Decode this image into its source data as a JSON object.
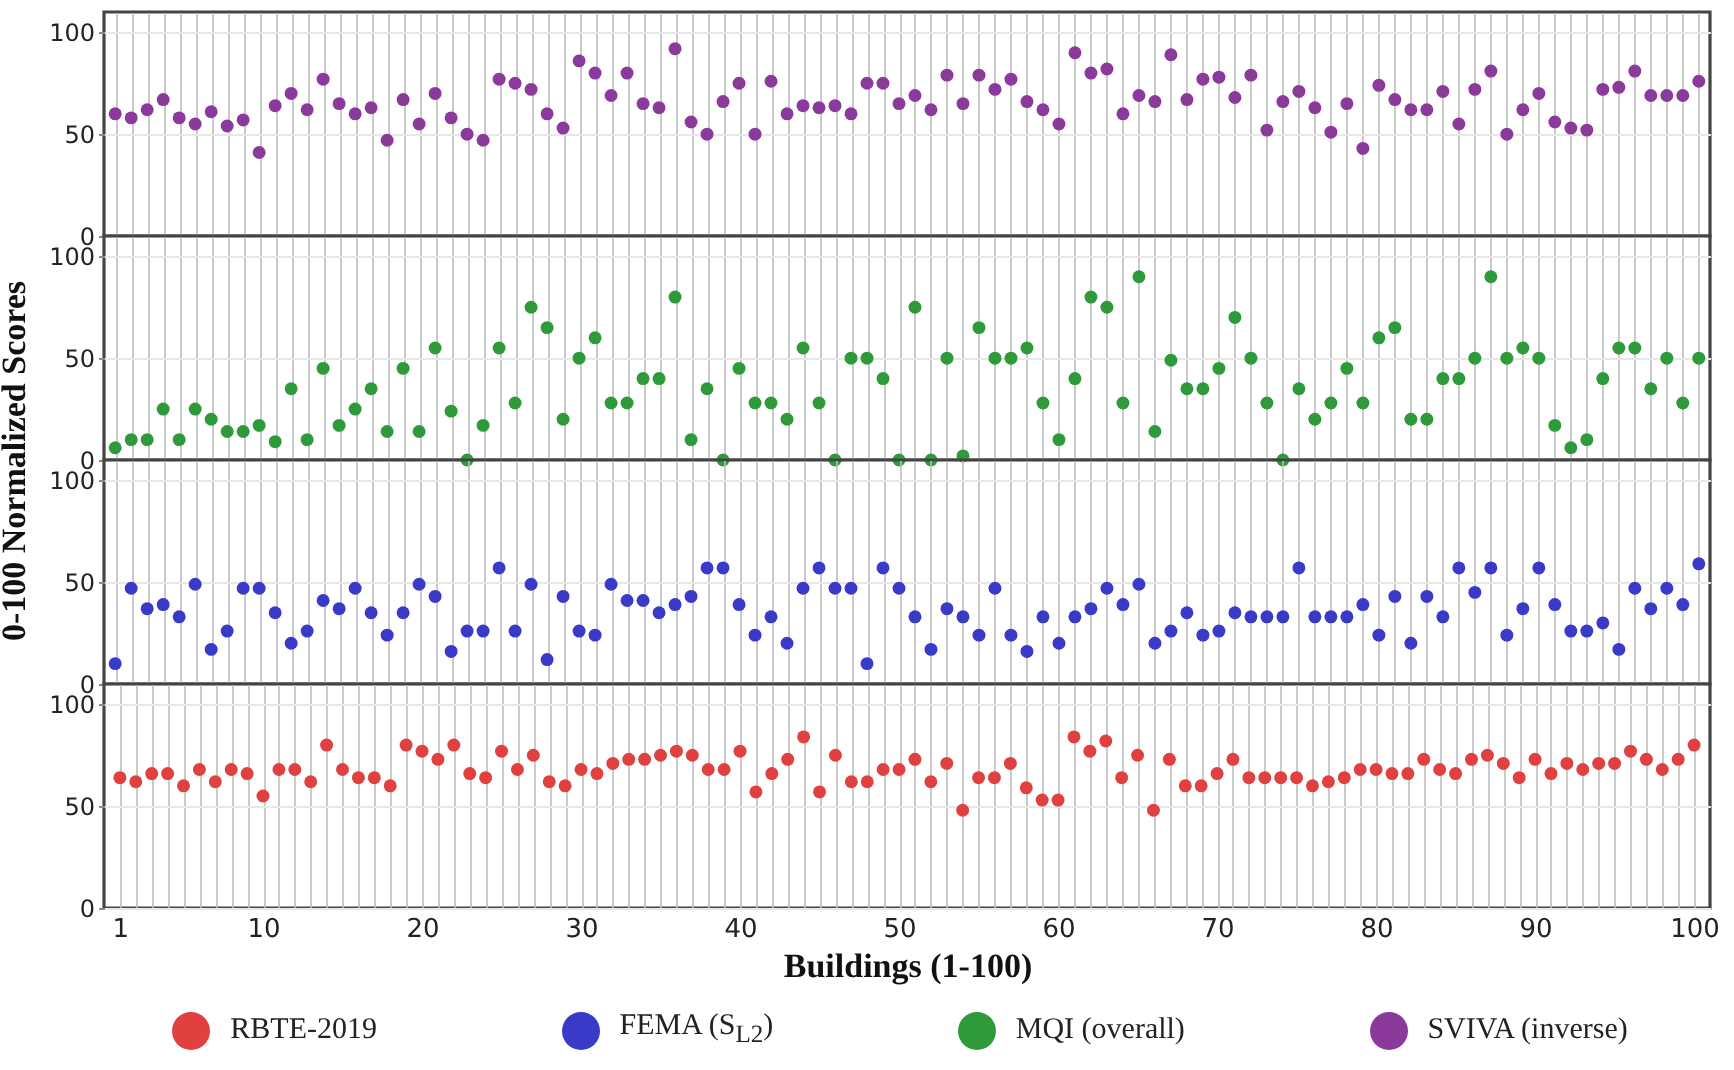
{
  "chart_data": [
    {
      "type": "scatter",
      "marker": "circle",
      "grid": true,
      "tick_labels": "y",
      "legend": "bottom",
      "ylim": [
        0,
        110
      ],
      "yticks": [
        0,
        50,
        100
      ],
      "categories": [
        null,
        null,
        null,
        null,
        null,
        null,
        null,
        null,
        null,
        null,
        null,
        null,
        null,
        null,
        null,
        null,
        null,
        null,
        null,
        null,
        null,
        null,
        null,
        null,
        null,
        null,
        null,
        null,
        null,
        null,
        null,
        null,
        null,
        null,
        null,
        null,
        null,
        null,
        null,
        null,
        null,
        null,
        null,
        null,
        null,
        null,
        null,
        null,
        null,
        null,
        null,
        null,
        null,
        null,
        null,
        null,
        null,
        null,
        null,
        null,
        null,
        null,
        null,
        null,
        null,
        null,
        null,
        null,
        null,
        null,
        null,
        null,
        null,
        null,
        null,
        null,
        null,
        null,
        null,
        null,
        null,
        null,
        null,
        null,
        null,
        null,
        null,
        null,
        null,
        null,
        null,
        null,
        null,
        null,
        null,
        null,
        null,
        null,
        null,
        null
      ],
      "series": [
        {
          "name": "SVIVA (inverse)",
          "color": "#8b3a9b",
          "values": [
            60,
            58,
            62,
            67,
            58,
            55,
            61,
            54,
            57,
            41,
            64,
            70,
            62,
            77,
            65,
            60,
            63,
            47,
            67,
            55,
            70,
            58,
            50,
            47,
            77,
            75,
            72,
            60,
            53,
            86,
            80,
            69,
            80,
            65,
            63,
            92,
            56,
            50,
            66,
            75,
            50,
            76,
            60,
            64,
            63,
            64,
            60,
            75,
            75,
            65,
            69,
            62,
            79,
            65,
            79,
            72,
            77,
            66,
            62,
            55,
            90,
            80,
            82,
            60,
            69,
            66,
            89,
            67,
            77,
            78,
            68,
            79,
            52,
            66,
            71,
            63,
            51,
            65,
            43,
            74,
            67,
            62,
            62,
            71,
            55,
            72,
            81,
            50,
            62,
            70,
            56,
            53,
            52,
            72,
            73,
            81,
            69,
            69,
            69,
            76
          ]
        }
      ]
    },
    {
      "type": "scatter",
      "marker": "circle",
      "grid": true,
      "tick_labels": "y",
      "legend": "bottom",
      "ylabel": "0-100 Normalized Scores",
      "ylim": [
        0,
        110
      ],
      "yticks": [
        0,
        50,
        100
      ],
      "categories": [
        null,
        null,
        null,
        null,
        null,
        null,
        null,
        null,
        null,
        null,
        null,
        null,
        null,
        null,
        null,
        null,
        null,
        null,
        null,
        null,
        null,
        null,
        null,
        null,
        null,
        null,
        null,
        null,
        null,
        null,
        null,
        null,
        null,
        null,
        null,
        null,
        null,
        null,
        null,
        null,
        null,
        null,
        null,
        null,
        null,
        null,
        null,
        null,
        null,
        null,
        null,
        null,
        null,
        null,
        null,
        null,
        null,
        null,
        null,
        null,
        null,
        null,
        null,
        null,
        null,
        null,
        null,
        null,
        null,
        null,
        null,
        null,
        null,
        null,
        null,
        null,
        null,
        null,
        null,
        null,
        null,
        null,
        null,
        null,
        null,
        null,
        null,
        null,
        null,
        null,
        null,
        null,
        null,
        null,
        null,
        null,
        null,
        null,
        null,
        null
      ],
      "series": [
        {
          "name": "MQI (overall)",
          "color": "#2f9a3a",
          "values": [
            6,
            10,
            10,
            25,
            10,
            25,
            20,
            14,
            14,
            17,
            9,
            35,
            10,
            45,
            17,
            25,
            35,
            14,
            45,
            14,
            55,
            24,
            0,
            17,
            55,
            28,
            75,
            65,
            20,
            50,
            60,
            28,
            28,
            40,
            40,
            80,
            10,
            35,
            0,
            45,
            28,
            28,
            20,
            55,
            28,
            0,
            50,
            50,
            40,
            0,
            75,
            0,
            50,
            2,
            65,
            50,
            50,
            55,
            28,
            10,
            40,
            80,
            75,
            28,
            90,
            14,
            49,
            35,
            35,
            45,
            70,
            50,
            28,
            0,
            35,
            20,
            28,
            45,
            28,
            60,
            65,
            20,
            20,
            40,
            40,
            50,
            90,
            50,
            55,
            50,
            17,
            6,
            10,
            40,
            55,
            55,
            35,
            50,
            28,
            50
          ]
        }
      ]
    },
    {
      "type": "scatter",
      "marker": "circle",
      "grid": true,
      "tick_labels": "y",
      "legend": "bottom",
      "ylim": [
        0,
        110
      ],
      "yticks": [
        0,
        50,
        100
      ],
      "categories": [
        null,
        null,
        null,
        null,
        null,
        null,
        null,
        null,
        null,
        null,
        null,
        null,
        null,
        null,
        null,
        null,
        null,
        null,
        null,
        null,
        null,
        null,
        null,
        null,
        null,
        null,
        null,
        null,
        null,
        null,
        null,
        null,
        null,
        null,
        null,
        null,
        null,
        null,
        null,
        null,
        null,
        null,
        null,
        null,
        null,
        null,
        null,
        null,
        null,
        null,
        null,
        null,
        null,
        null,
        null,
        null,
        null,
        null,
        null,
        null,
        null,
        null,
        null,
        null,
        null,
        null,
        null,
        null,
        null,
        null,
        null,
        null,
        null,
        null,
        null,
        null,
        null,
        null,
        null,
        null,
        null,
        null,
        null,
        null,
        null,
        null,
        null,
        null,
        null,
        null,
        null,
        null,
        null,
        null,
        null,
        null,
        null,
        null,
        null,
        null
      ],
      "series": [
        {
          "name": "FEMA (S$_{L2}$)",
          "color": "#3a3ac8",
          "values": [
            10,
            47,
            37,
            39,
            33,
            49,
            17,
            26,
            47,
            47,
            35,
            20,
            26,
            41,
            37,
            47,
            35,
            24,
            35,
            49,
            43,
            16,
            26,
            26,
            57,
            26,
            49,
            12,
            43,
            26,
            24,
            49,
            41,
            41,
            35,
            39,
            43,
            57,
            57,
            39,
            24,
            33,
            20,
            47,
            57,
            47,
            47,
            10,
            57,
            47,
            33,
            17,
            37,
            33,
            24,
            47,
            24,
            16,
            33,
            20,
            33,
            37,
            47,
            39,
            49,
            20,
            26,
            35,
            24,
            26,
            35,
            33,
            33,
            33,
            57,
            33,
            33,
            33,
            39,
            24,
            43,
            20,
            43,
            33,
            57,
            45,
            57,
            24,
            37,
            57,
            39,
            26,
            26,
            30,
            17,
            47,
            37,
            47,
            39,
            59
          ]
        }
      ]
    },
    {
      "type": "scatter",
      "marker": "circle",
      "grid": true,
      "legend": "bottom",
      "xlabel": "Buildings (1-100)",
      "xlim": [
        0,
        101
      ],
      "ylim": [
        0,
        110
      ],
      "yticks": [
        0,
        50,
        100
      ],
      "xticks": [
        1,
        {
          "value": 2,
          "label": null
        },
        {
          "value": 3,
          "label": null
        },
        {
          "value": 4,
          "label": null
        },
        {
          "value": 5,
          "label": null
        },
        {
          "value": 6,
          "label": null
        },
        {
          "value": 7,
          "label": null
        },
        {
          "value": 8,
          "label": null
        },
        {
          "value": 9,
          "label": null
        },
        10,
        {
          "value": 11,
          "label": null
        },
        {
          "value": 12,
          "label": null
        },
        {
          "value": 13,
          "label": null
        },
        {
          "value": 14,
          "label": null
        },
        {
          "value": 15,
          "label": null
        },
        {
          "value": 16,
          "label": null
        },
        {
          "value": 17,
          "label": null
        },
        {
          "value": 18,
          "label": null
        },
        {
          "value": 19,
          "label": null
        },
        20,
        {
          "value": 21,
          "label": null
        },
        {
          "value": 22,
          "label": null
        },
        {
          "value": 23,
          "label": null
        },
        {
          "value": 24,
          "label": null
        },
        {
          "value": 25,
          "label": null
        },
        {
          "value": 26,
          "label": null
        },
        {
          "value": 27,
          "label": null
        },
        {
          "value": 28,
          "label": null
        },
        {
          "value": 29,
          "label": null
        },
        30,
        {
          "value": 31,
          "label": null
        },
        {
          "value": 32,
          "label": null
        },
        {
          "value": 33,
          "label": null
        },
        {
          "value": 34,
          "label": null
        },
        {
          "value": 35,
          "label": null
        },
        {
          "value": 36,
          "label": null
        },
        {
          "value": 37,
          "label": null
        },
        {
          "value": 38,
          "label": null
        },
        {
          "value": 39,
          "label": null
        },
        40,
        {
          "value": 41,
          "label": null
        },
        {
          "value": 42,
          "label": null
        },
        {
          "value": 43,
          "label": null
        },
        {
          "value": 44,
          "label": null
        },
        {
          "value": 45,
          "label": null
        },
        {
          "value": 46,
          "label": null
        },
        {
          "value": 47,
          "label": null
        },
        {
          "value": 48,
          "label": null
        },
        {
          "value": 49,
          "label": null
        },
        50,
        {
          "value": 51,
          "label": null
        },
        {
          "value": 52,
          "label": null
        },
        {
          "value": 53,
          "label": null
        },
        {
          "value": 54,
          "label": null
        },
        {
          "value": 55,
          "label": null
        },
        {
          "value": 56,
          "label": null
        },
        {
          "value": 57,
          "label": null
        },
        {
          "value": 58,
          "label": null
        },
        {
          "value": 59,
          "label": null
        },
        60,
        {
          "value": 61,
          "label": null
        },
        {
          "value": 62,
          "label": null
        },
        {
          "value": 63,
          "label": null
        },
        {
          "value": 64,
          "label": null
        },
        {
          "value": 65,
          "label": null
        },
        {
          "value": 66,
          "label": null
        },
        {
          "value": 67,
          "label": null
        },
        {
          "value": 68,
          "label": null
        },
        {
          "value": 69,
          "label": null
        },
        70,
        {
          "value": 71,
          "label": null
        },
        {
          "value": 72,
          "label": null
        },
        {
          "value": 73,
          "label": null
        },
        {
          "value": 74,
          "label": null
        },
        {
          "value": 75,
          "label": null
        },
        {
          "value": 76,
          "label": null
        },
        {
          "value": 77,
          "label": null
        },
        {
          "value": 78,
          "label": null
        },
        {
          "value": 79,
          "label": null
        },
        80,
        {
          "value": 81,
          "label": null
        },
        {
          "value": 82,
          "label": null
        },
        {
          "value": 83,
          "label": null
        },
        {
          "value": 84,
          "label": null
        },
        {
          "value": 85,
          "label": null
        },
        {
          "value": 86,
          "label": null
        },
        {
          "value": 87,
          "label": null
        },
        {
          "value": 88,
          "label": null
        },
        {
          "value": 89,
          "label": null
        },
        90,
        {
          "value": 91,
          "label": null
        },
        {
          "value": 92,
          "label": null
        },
        {
          "value": 93,
          "label": null
        },
        {
          "value": 94,
          "label": null
        },
        {
          "value": 95,
          "label": null
        },
        {
          "value": 96,
          "label": null
        },
        {
          "value": 97,
          "label": null
        },
        {
          "value": 98,
          "label": null
        },
        {
          "value": 99,
          "label": null
        },
        100
      ],
      "x": [
        1,
        2,
        3,
        4,
        5,
        6,
        7,
        8,
        9,
        10,
        11,
        12,
        13,
        14,
        15,
        16,
        17,
        18,
        19,
        20,
        21,
        22,
        23,
        24,
        25,
        26,
        27,
        28,
        29,
        30,
        31,
        32,
        33,
        34,
        35,
        36,
        37,
        38,
        39,
        40,
        41,
        42,
        43,
        44,
        45,
        46,
        47,
        48,
        49,
        50,
        51,
        52,
        53,
        54,
        55,
        56,
        57,
        58,
        59,
        60,
        61,
        62,
        63,
        64,
        65,
        66,
        67,
        68,
        69,
        70,
        71,
        72,
        73,
        74,
        75,
        76,
        77,
        78,
        79,
        80,
        81,
        82,
        83,
        84,
        85,
        86,
        87,
        88,
        89,
        90,
        91,
        92,
        93,
        94,
        95,
        96,
        97,
        98,
        99,
        100
      ],
      "series": [
        {
          "name": "RBTE-2019",
          "color": "#e04040",
          "values": [
            64,
            62,
            66,
            66,
            60,
            68,
            62,
            68,
            66,
            55,
            68,
            68,
            62,
            80,
            68,
            64,
            64,
            60,
            80,
            77,
            73,
            80,
            66,
            64,
            77,
            68,
            75,
            62,
            60,
            68,
            66,
            71,
            73,
            73,
            75,
            77,
            75,
            68,
            68,
            77,
            57,
            66,
            73,
            84,
            57,
            75,
            62,
            62,
            68,
            68,
            73,
            62,
            71,
            48,
            64,
            64,
            71,
            59,
            53,
            53,
            84,
            77,
            82,
            64,
            75,
            48,
            73,
            60,
            60,
            66,
            73,
            64,
            64,
            64,
            64,
            60,
            62,
            64,
            68,
            68,
            66,
            66,
            73,
            68,
            66,
            73,
            75,
            71,
            64,
            73,
            66,
            71,
            68,
            71,
            71,
            77,
            73,
            68,
            73,
            80
          ]
        }
      ]
    }
  ]
}
